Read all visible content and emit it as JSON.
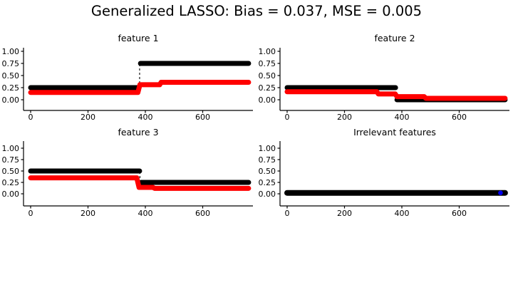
{
  "figure": {
    "suptitle": "Generalized LASSO: Bias = 0.037, MSE = 0.005",
    "background": "#ffffff"
  },
  "colors": {
    "true_series": "#000000",
    "estimate_series": "#ff0000",
    "highlight_dot": "#0000ee",
    "axis": "#000000"
  },
  "chart_data": [
    {
      "type": "line",
      "title": "feature 1",
      "row": "top",
      "grid": false,
      "legend": null,
      "xlim": [
        -25,
        775
      ],
      "ylim": [
        -0.22,
        1.07
      ],
      "xticks": [
        0,
        200,
        400,
        600
      ],
      "ytick_values": [
        0,
        0.25,
        0.5,
        0.75,
        1
      ],
      "ytick_labels": [
        "0.00",
        "0.25",
        "0.50",
        "0.75",
        "1.00"
      ],
      "series": [
        {
          "name": "true-signal",
          "color": "#000000",
          "kind": "segments",
          "width": 7,
          "data": [
            [
              0,
              378,
              0.25
            ],
            [
              383,
              760,
              0.75
            ]
          ]
        },
        {
          "name": "lasso-estimate",
          "color": "#ff0000",
          "kind": "steps",
          "width": 7,
          "data": [
            [
              0,
              0.15
            ],
            [
              374,
              0.15
            ],
            [
              381,
              0.31
            ],
            [
              450,
              0.31
            ],
            [
              455,
              0.36
            ],
            [
              760,
              0.36
            ]
          ]
        }
      ],
      "vlines": [
        {
          "x": 380,
          "from": 0.25,
          "to": 0.75,
          "style": "dashed",
          "color": "#000000"
        }
      ],
      "dots": []
    },
    {
      "type": "line",
      "title": "feature 2",
      "row": "top",
      "grid": false,
      "legend": null,
      "xlim": [
        -25,
        775
      ],
      "ylim": [
        -0.22,
        1.07
      ],
      "xticks": [
        0,
        200,
        400,
        600
      ],
      "ytick_values": [
        0,
        0.25,
        0.5,
        0.75,
        1
      ],
      "ytick_labels": [
        "0.00",
        "0.25",
        "0.50",
        "0.75",
        "1.00"
      ],
      "series": [
        {
          "name": "true-signal",
          "color": "#000000",
          "kind": "segments",
          "width": 7,
          "data": [
            [
              0,
              378,
              0.25
            ],
            [
              383,
              760,
              0
            ]
          ]
        },
        {
          "name": "lasso-estimate",
          "color": "#ff0000",
          "kind": "steps",
          "width": 7,
          "data": [
            [
              0,
              0.165
            ],
            [
              313,
              0.165
            ],
            [
              318,
              0.12
            ],
            [
              377,
              0.12
            ],
            [
              383,
              0.065
            ],
            [
              478,
              0.065
            ],
            [
              484,
              0.03
            ],
            [
              760,
              0.03
            ]
          ]
        }
      ],
      "vlines": [],
      "dots": []
    },
    {
      "type": "line",
      "title": "feature 3",
      "row": "bottom",
      "grid": false,
      "legend": null,
      "xlim": [
        -25,
        775
      ],
      "ylim": [
        -0.27,
        1.12
      ],
      "xticks": [
        0,
        200,
        400,
        600
      ],
      "ytick_values": [
        0,
        0.25,
        0.5,
        0.75,
        1
      ],
      "ytick_labels": [
        "0.00",
        "0.25",
        "0.50",
        "0.75",
        "1.00"
      ],
      "series": [
        {
          "name": "true-signal",
          "color": "#000000",
          "kind": "segments",
          "width": 7,
          "data": [
            [
              0,
              380,
              0.5
            ],
            [
              385,
              760,
              0.25
            ]
          ]
        },
        {
          "name": "lasso-estimate",
          "color": "#ff0000",
          "kind": "steps",
          "width": 7,
          "data": [
            [
              0,
              0.35
            ],
            [
              370,
              0.35
            ],
            [
              378,
              0.14
            ],
            [
              427,
              0.14
            ],
            [
              432,
              0.12
            ],
            [
              760,
              0.12
            ]
          ]
        }
      ],
      "vlines": [
        {
          "x": 381,
          "from": 0.25,
          "to": 0.5,
          "style": "dashed",
          "color": "#000000"
        }
      ],
      "dots": []
    },
    {
      "type": "line",
      "title": "Irrelevant features",
      "row": "bottom",
      "grid": false,
      "legend": null,
      "xlim": [
        -25,
        775
      ],
      "ylim": [
        -0.27,
        1.12
      ],
      "xticks": [
        0,
        200,
        400,
        600
      ],
      "ytick_values": [
        0,
        0.25,
        0.5,
        0.75,
        1
      ],
      "ytick_labels": [
        "0.00",
        "0.25",
        "0.50",
        "0.75",
        "1.00"
      ],
      "series": [
        {
          "name": "true-signal",
          "color": "#000000",
          "kind": "segments",
          "width": 8,
          "data": [
            [
              0,
              760,
              0.02
            ]
          ]
        }
      ],
      "vlines": [],
      "dots": [
        {
          "x": 744,
          "y": 0.02,
          "color": "#0000ee",
          "r": 3.3
        }
      ]
    }
  ]
}
